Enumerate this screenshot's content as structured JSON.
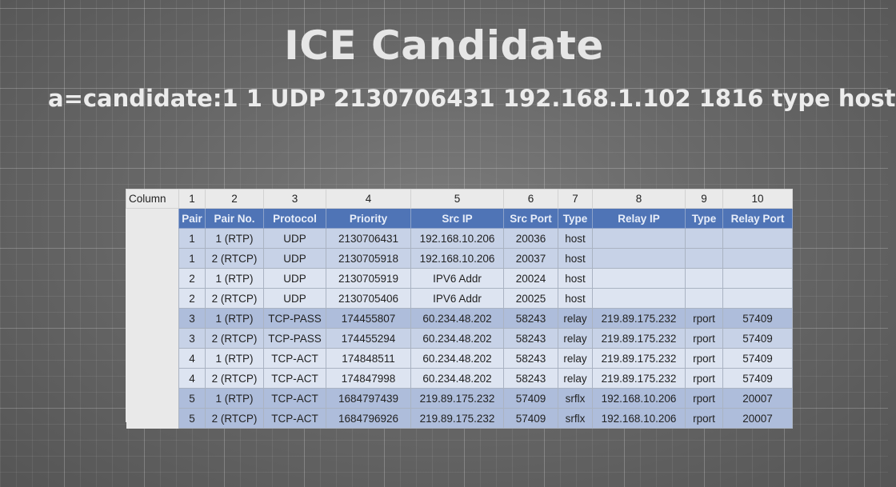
{
  "slide": {
    "title": "ICE Candidate",
    "subtitle": "a=candidate:1 1 UDP 2130706431 192.168.1.102 1816 type host"
  },
  "table": {
    "column_label": "Column",
    "column_numbers": [
      "1",
      "2",
      "3",
      "4",
      "5",
      "6",
      "7",
      "8",
      "9",
      "10"
    ],
    "headers": [
      "Pair",
      "Pair No.",
      "Protocol",
      "Priority",
      "Src IP",
      "Src Port",
      "Type",
      "Relay IP",
      "Type",
      "Relay Port"
    ],
    "rows": [
      [
        "1",
        "1 (RTP)",
        "UDP",
        "2130706431",
        "192.168.10.206",
        "20036",
        "host",
        "",
        "",
        ""
      ],
      [
        "1",
        "2 (RTCP)",
        "UDP",
        "2130705918",
        "192.168.10.206",
        "20037",
        "host",
        "",
        "",
        ""
      ],
      [
        "2",
        "1 (RTP)",
        "UDP",
        "2130705919",
        "IPV6 Addr",
        "20024",
        "host",
        "",
        "",
        ""
      ],
      [
        "2",
        "2 (RTCP)",
        "UDP",
        "2130705406",
        "IPV6 Addr",
        "20025",
        "host",
        "",
        "",
        ""
      ],
      [
        "3",
        "1 (RTP)",
        "TCP-PASS",
        "174455807",
        "60.234.48.202",
        "58243",
        "relay",
        "219.89.175.232",
        "rport",
        "57409"
      ],
      [
        "3",
        "2 (RTCP)",
        "TCP-PASS",
        "174455294",
        "60.234.48.202",
        "58243",
        "relay",
        "219.89.175.232",
        "rport",
        "57409"
      ],
      [
        "4",
        "1 (RTP)",
        "TCP-ACT",
        "174848511",
        "60.234.48.202",
        "58243",
        "relay",
        "219.89.175.232",
        "rport",
        "57409"
      ],
      [
        "4",
        "2 (RTCP)",
        "TCP-ACT",
        "174847998",
        "60.234.48.202",
        "58243",
        "relay",
        "219.89.175.232",
        "rport",
        "57409"
      ],
      [
        "5",
        "1 (RTP)",
        "TCP-ACT",
        "1684797439",
        "219.89.175.232",
        "57409",
        "srflx",
        "192.168.10.206",
        "rport",
        "20007"
      ],
      [
        "5",
        "2 (RTCP)",
        "TCP-ACT",
        "1684796926",
        "219.89.175.232",
        "57409",
        "srflx",
        "192.168.10.206",
        "rport",
        "20007"
      ]
    ],
    "row_shading": [
      "light",
      "light",
      "alt",
      "alt",
      "dark",
      "light",
      "alt",
      "alt",
      "dark",
      "dark"
    ]
  },
  "colors": {
    "header_blue": "#4f74b6",
    "row_blue": "#c7d2e7",
    "row_light": "#dde4f1",
    "row_dark": "#aebddb"
  }
}
